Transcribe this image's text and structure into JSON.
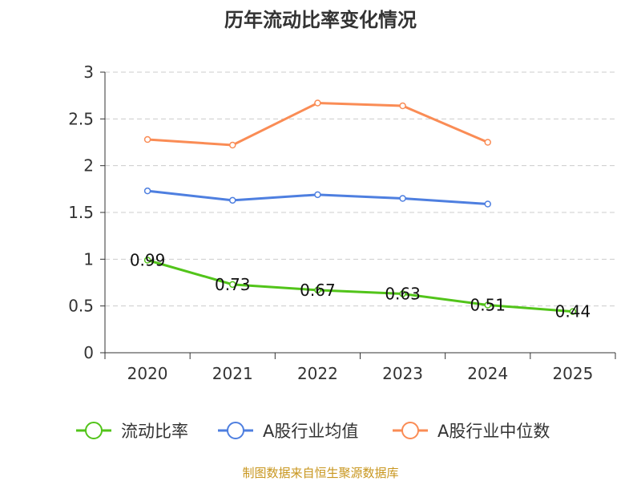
{
  "chart_data": {
    "type": "line",
    "title": "历年流动比率变化情况",
    "categories": [
      "2020",
      "2021",
      "2022",
      "2023",
      "2024",
      "2025"
    ],
    "ylim": [
      0,
      3
    ],
    "yticks": [
      "0",
      "0.5",
      "1",
      "1.5",
      "2",
      "2.5",
      "3"
    ],
    "grid": true,
    "legend_position": "bottom",
    "series": [
      {
        "name": "流动比率",
        "color": "#52c41a",
        "values": [
          0.99,
          0.73,
          0.67,
          0.63,
          0.51,
          0.44
        ],
        "labels": [
          "0.99",
          "0.73",
          "0.67",
          "0.63",
          "0.51",
          "0.44"
        ]
      },
      {
        "name": "A股行业均值",
        "color": "#4e7fe0",
        "values": [
          1.73,
          1.63,
          1.69,
          1.65,
          1.59,
          null
        ]
      },
      {
        "name": "A股行业中位数",
        "color": "#fa8c55",
        "values": [
          2.28,
          2.22,
          2.67,
          2.64,
          2.25,
          null
        ]
      }
    ]
  },
  "footer": "制图数据来自恒生聚源数据库"
}
